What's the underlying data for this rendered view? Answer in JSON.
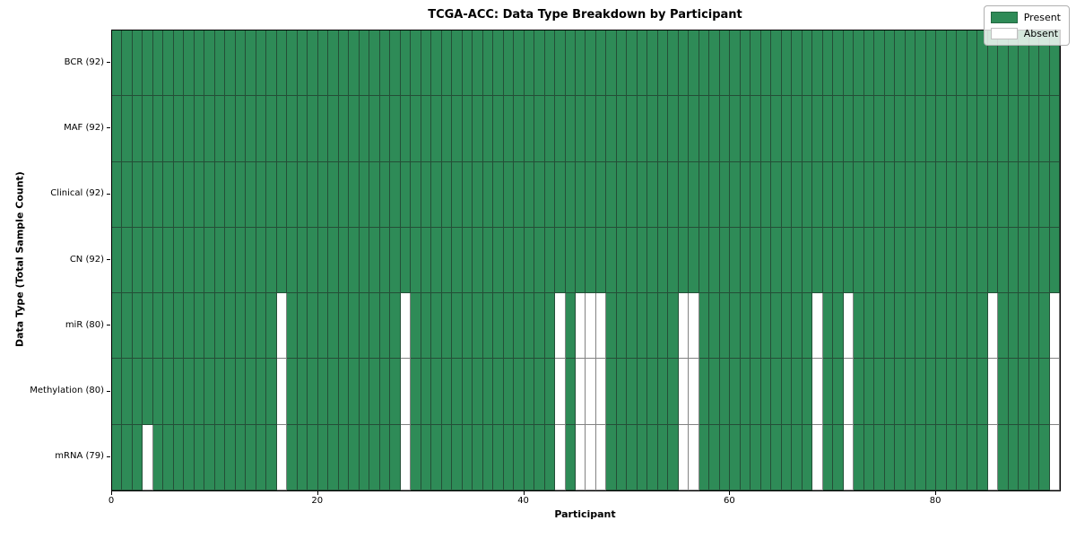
{
  "chart_data": {
    "type": "heatmap",
    "title": "TCGA-ACC: Data Type Breakdown by Participant",
    "xlabel": "Participant",
    "ylabel": "Data Type (Total Sample Count)",
    "x_ticks": [
      0,
      20,
      40,
      60,
      80
    ],
    "xlim": [
      0,
      92
    ],
    "n_participants": 92,
    "grid": true,
    "legend_position": "upper right",
    "rows": [
      {
        "label": "BCR (92)",
        "data_type": "BCR",
        "present_count": 92,
        "absent_participants": []
      },
      {
        "label": "MAF (92)",
        "data_type": "MAF",
        "present_count": 92,
        "absent_participants": []
      },
      {
        "label": "Clinical (92)",
        "data_type": "Clinical",
        "present_count": 92,
        "absent_participants": []
      },
      {
        "label": "CN (92)",
        "data_type": "CN",
        "present_count": 92,
        "absent_participants": []
      },
      {
        "label": "miR (80)",
        "data_type": "miR",
        "present_count": 80,
        "absent_participants": [
          16,
          28,
          43,
          45,
          46,
          47,
          55,
          56,
          68,
          71,
          85,
          91
        ]
      },
      {
        "label": "Methylation (80)",
        "data_type": "Methylation",
        "present_count": 80,
        "absent_participants": [
          16,
          28,
          43,
          45,
          46,
          47,
          55,
          56,
          68,
          71,
          85,
          91
        ]
      },
      {
        "label": "mRNA (79)",
        "data_type": "mRNA",
        "present_count": 79,
        "absent_participants": [
          3,
          16,
          28,
          43,
          45,
          46,
          47,
          55,
          56,
          68,
          71,
          85,
          91
        ]
      }
    ],
    "legend": [
      {
        "label": "Present",
        "color": "#2e8b57"
      },
      {
        "label": "Absent",
        "color": "#ffffff"
      }
    ],
    "colors": {
      "present": "#2e8b57",
      "absent": "#ffffff",
      "gridline": "rgba(30,30,30,0.55)",
      "spine": "#000000"
    }
  }
}
